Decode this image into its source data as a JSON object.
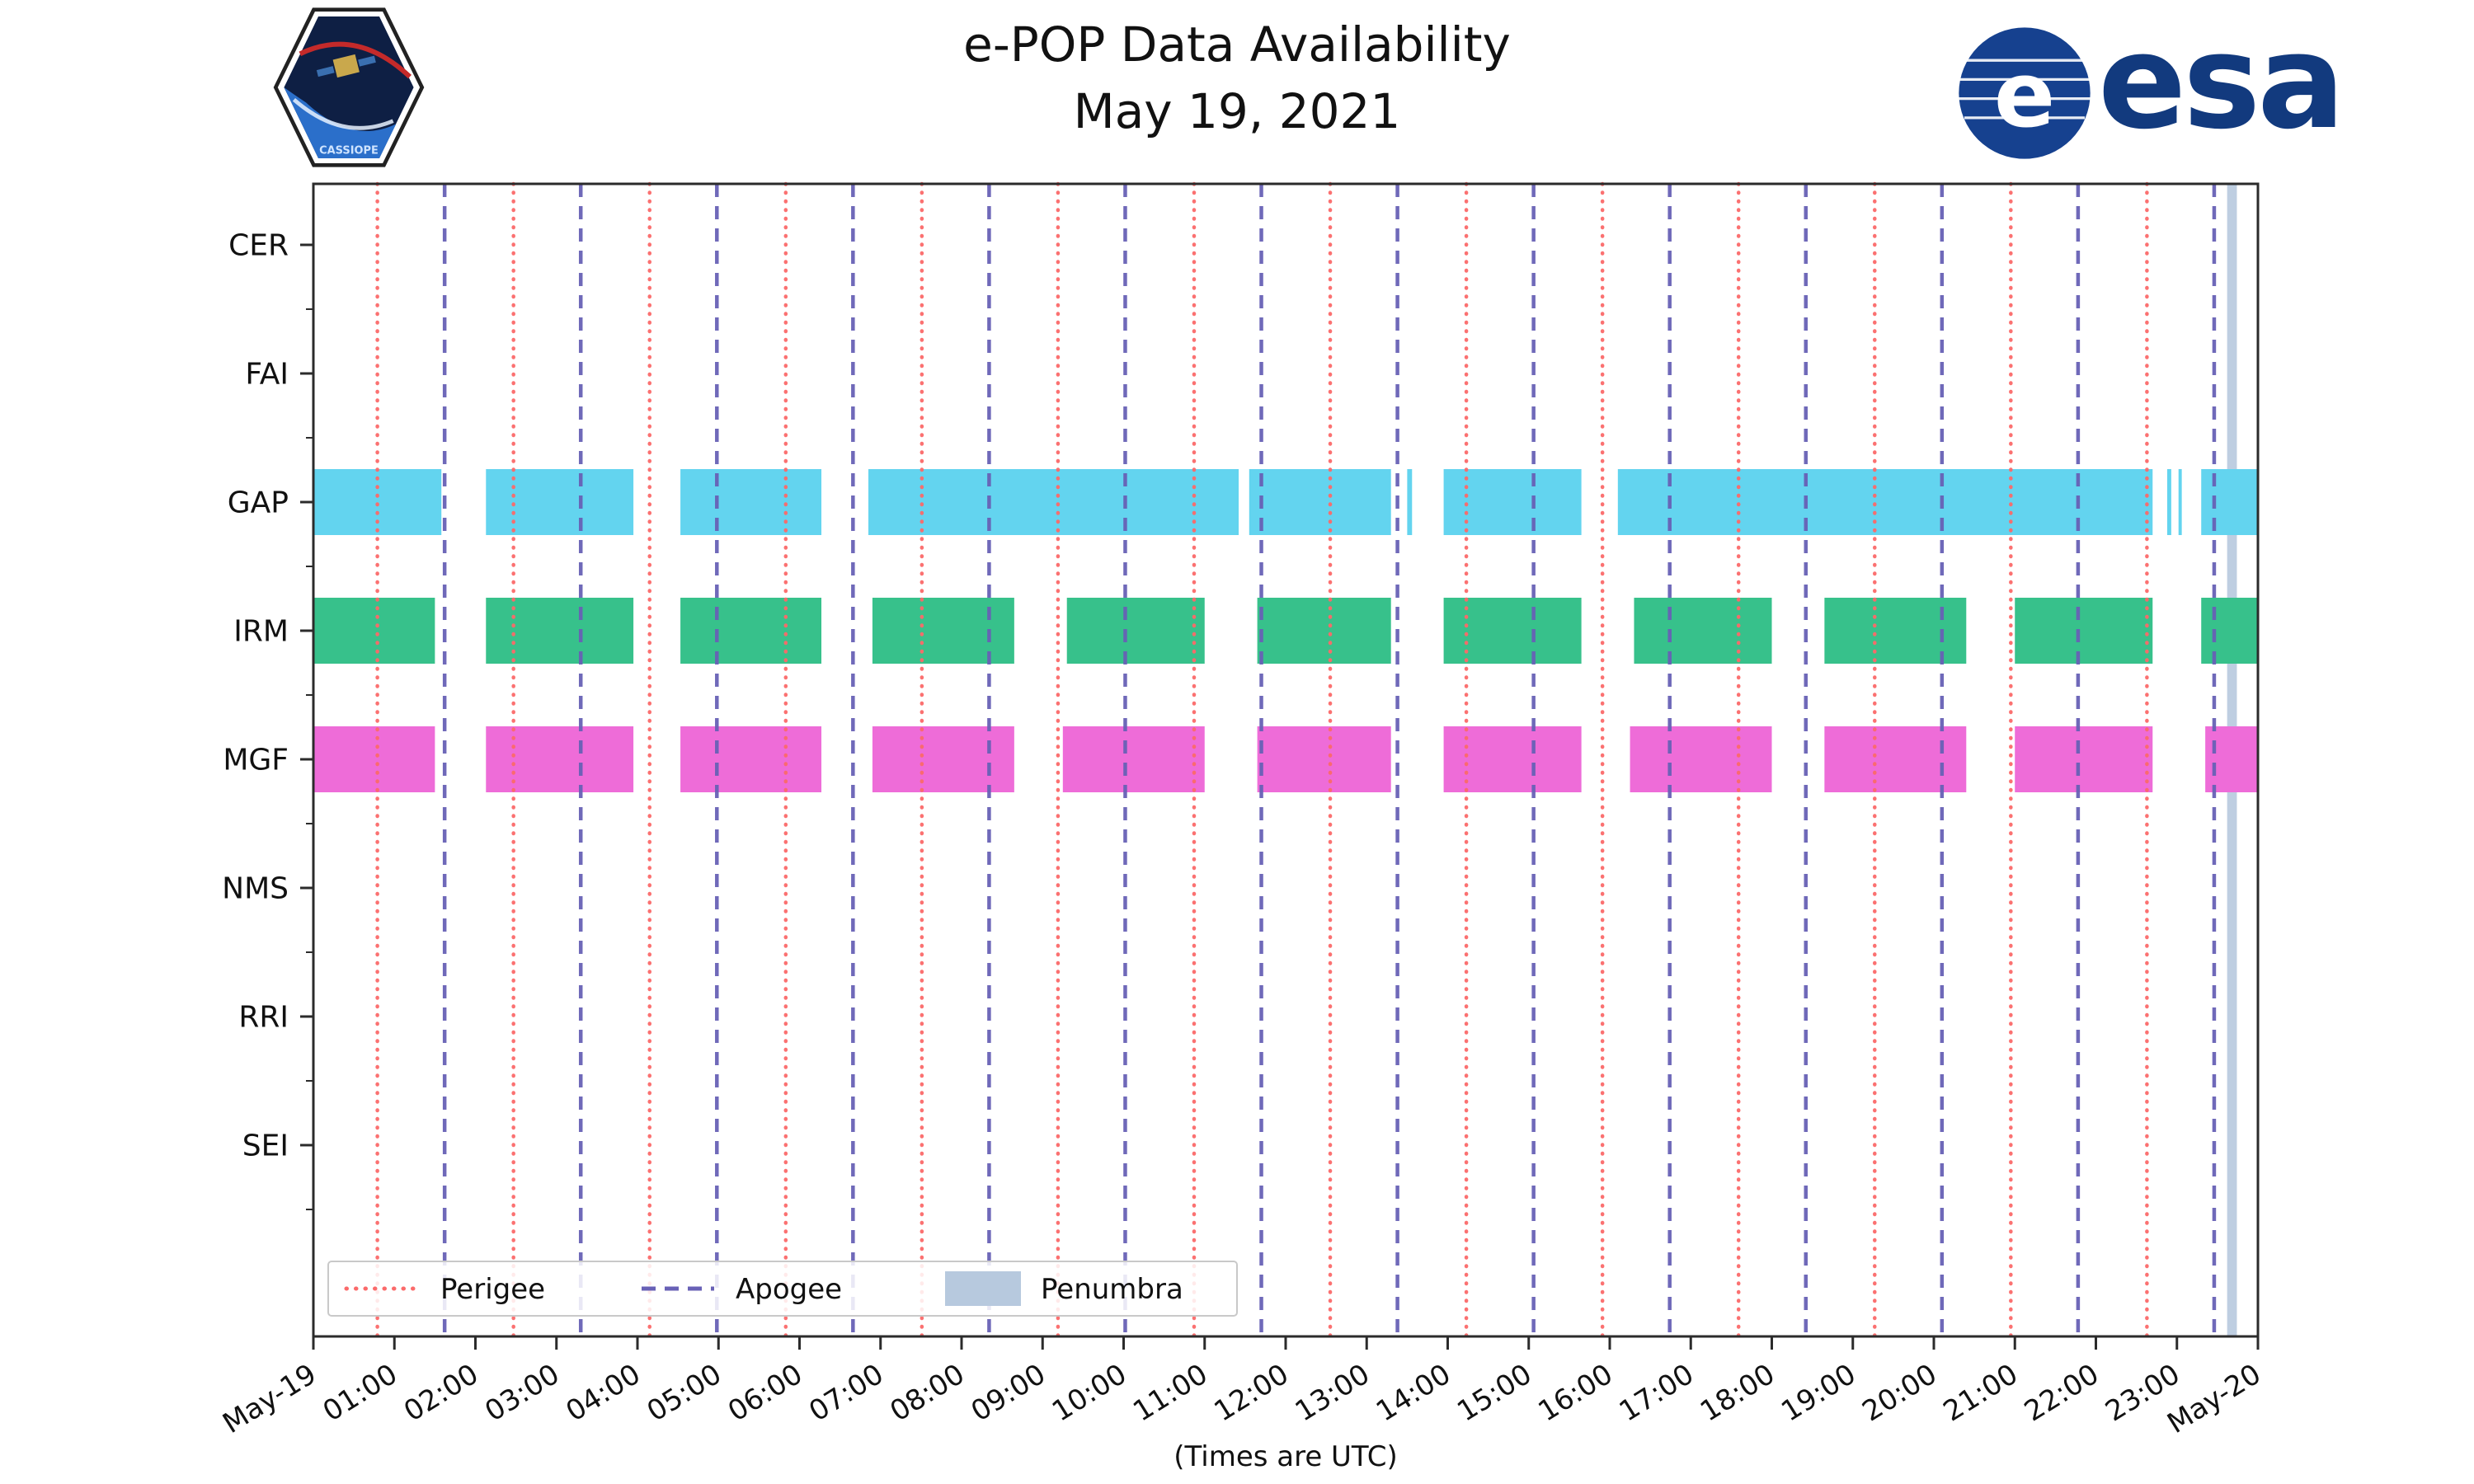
{
  "header": {
    "title": "e-POP Data Availability",
    "subtitle": "May 19, 2021"
  },
  "logos": {
    "esa_wordmark": "esa",
    "cassiope_label": "CASSIOPE"
  },
  "chart_data": {
    "type": "availability-gantt",
    "title": "e-POP Data Availability",
    "subtitle": "May 19, 2021",
    "xlabel": "(Times are UTC)",
    "x_range_hours": [
      0,
      24
    ],
    "x_tick_labels": [
      "May-19",
      "01:00",
      "02:00",
      "03:00",
      "04:00",
      "05:00",
      "06:00",
      "07:00",
      "08:00",
      "09:00",
      "10:00",
      "11:00",
      "12:00",
      "13:00",
      "14:00",
      "15:00",
      "16:00",
      "17:00",
      "18:00",
      "19:00",
      "20:00",
      "21:00",
      "22:00",
      "23:00",
      "May-20"
    ],
    "rows": [
      "CER",
      "FAI",
      "GAP",
      "IRM",
      "MGF",
      "NMS",
      "RRI",
      "SEI"
    ],
    "series": [
      {
        "row": "GAP",
        "color": "#63d4ef",
        "intervals": [
          [
            0,
            1.58
          ],
          [
            2.13,
            3.95
          ],
          [
            4.53,
            6.27
          ],
          [
            6.85,
            11.42
          ],
          [
            11.55,
            13.3
          ],
          [
            13.5,
            13.56
          ],
          [
            13.95,
            15.65
          ],
          [
            16.1,
            22.7
          ],
          [
            22.88,
            22.93
          ],
          [
            23.02,
            23.06
          ],
          [
            23.3,
            24
          ]
        ]
      },
      {
        "row": "IRM",
        "color": "#37c18b",
        "intervals": [
          [
            0,
            1.5
          ],
          [
            2.13,
            3.95
          ],
          [
            4.53,
            6.27
          ],
          [
            6.9,
            8.65
          ],
          [
            9.3,
            11.0
          ],
          [
            11.65,
            13.3
          ],
          [
            13.95,
            15.65
          ],
          [
            16.3,
            18.0
          ],
          [
            18.65,
            20.4
          ],
          [
            21.0,
            22.7
          ],
          [
            23.3,
            24
          ]
        ]
      },
      {
        "row": "MGF",
        "color": "#ee6cd8",
        "intervals": [
          [
            0,
            1.5
          ],
          [
            2.13,
            3.95
          ],
          [
            4.53,
            6.27
          ],
          [
            6.9,
            8.65
          ],
          [
            9.25,
            11.0
          ],
          [
            11.65,
            13.3
          ],
          [
            13.95,
            15.65
          ],
          [
            16.25,
            18.0
          ],
          [
            18.65,
            20.4
          ],
          [
            21.0,
            22.7
          ],
          [
            23.35,
            24
          ]
        ]
      }
    ],
    "perigee": {
      "label": "Perigee",
      "color": "#fb6a6a",
      "times": [
        0.79,
        2.47,
        4.15,
        5.83,
        7.51,
        9.19,
        10.87,
        12.55,
        14.23,
        15.91,
        17.59,
        19.27,
        20.95,
        22.63
      ]
    },
    "apogee": {
      "label": "Apogee",
      "color": "#6861b6",
      "times": [
        1.62,
        3.3,
        4.98,
        6.66,
        8.34,
        10.02,
        11.7,
        13.38,
        15.06,
        16.74,
        18.42,
        20.1,
        21.78,
        23.46
      ]
    },
    "penumbra": {
      "label": "Penumbra",
      "color": "#b7c9de",
      "intervals": [
        [
          23.62,
          23.74
        ]
      ]
    },
    "legend_position": "lower-left",
    "grid": false,
    "axis_color": "#2b2b2b"
  }
}
